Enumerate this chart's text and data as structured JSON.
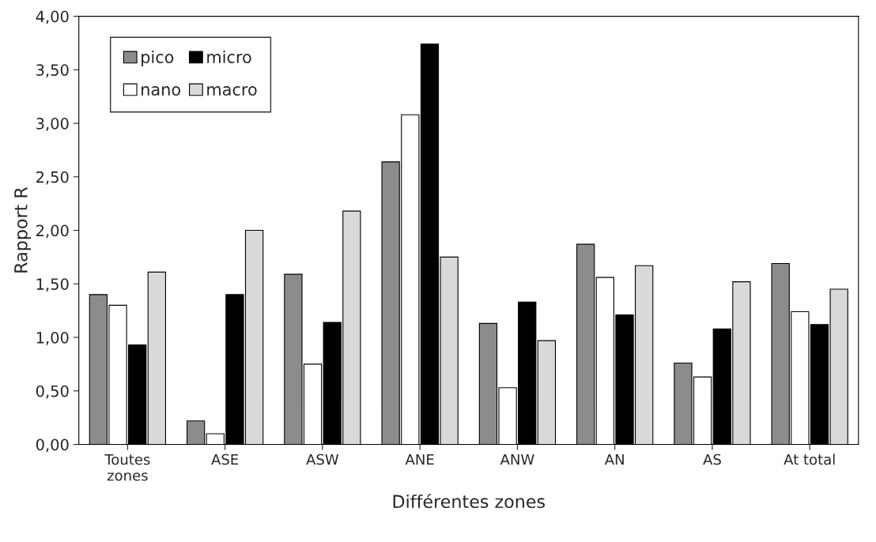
{
  "chart_data": {
    "type": "bar",
    "xlabel": "Différentes zones",
    "ylabel": "Rapport R",
    "categories": [
      "Toutes\nzones",
      "ASE",
      "ASW",
      "ANE",
      "ANW",
      "AN",
      "AS",
      "At total"
    ],
    "series": [
      {
        "name": "pico",
        "color": "#8c8c8c",
        "values": [
          1.4,
          0.22,
          1.59,
          2.64,
          1.13,
          1.87,
          0.76,
          1.69
        ]
      },
      {
        "name": "nano",
        "color": "#ffffff",
        "values": [
          1.3,
          0.1,
          0.75,
          3.08,
          0.53,
          1.56,
          0.63,
          1.24
        ]
      },
      {
        "name": "micro",
        "color": "#000000",
        "values": [
          0.93,
          1.4,
          1.14,
          3.74,
          1.33,
          1.21,
          1.08,
          1.12
        ]
      },
      {
        "name": "macro",
        "color": "#d9d9d9",
        "values": [
          1.61,
          2.0,
          2.18,
          1.75,
          0.97,
          1.67,
          1.52,
          1.45
        ]
      }
    ],
    "ylim": [
      0,
      4
    ],
    "yticks": [
      {
        "value": 0,
        "label": "0,00"
      },
      {
        "value": 0.5,
        "label": "0,50"
      },
      {
        "value": 1,
        "label": "1,00"
      },
      {
        "value": 1.5,
        "label": "1,50"
      },
      {
        "value": 2,
        "label": "2,00"
      },
      {
        "value": 2.5,
        "label": "2,50"
      },
      {
        "value": 3,
        "label": "3,00"
      },
      {
        "value": 3.5,
        "label": "3,50"
      },
      {
        "value": 4,
        "label": "4,00"
      }
    ],
    "grid": false,
    "legend": "top left"
  }
}
